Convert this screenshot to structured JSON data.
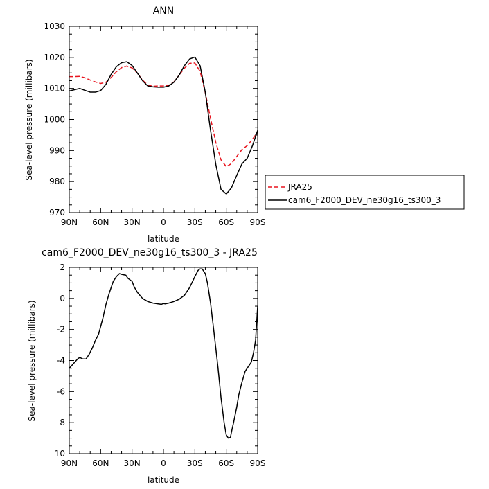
{
  "chart_data": [
    {
      "type": "line",
      "title": "ANN",
      "xlabel": "latitude",
      "ylabel": "Sea-level pressure (millibars)",
      "xlim": [
        90,
        -90
      ],
      "ylim": [
        970,
        1030
      ],
      "xticks": [
        90,
        60,
        30,
        0,
        -30,
        -60,
        -90
      ],
      "xtick_labels": [
        "90N",
        "60N",
        "30N",
        "0",
        "30S",
        "60S",
        "90S"
      ],
      "yticks": [
        970,
        980,
        990,
        1000,
        1010,
        1020,
        1030
      ],
      "ytick_labels": [
        "970",
        "980",
        "990",
        "1000",
        "1010",
        "1020",
        "1030"
      ],
      "legend": "outside-right",
      "series": [
        {
          "name": "JRA25",
          "style": "dashed",
          "color": "#e8141e",
          "x": [
            90,
            85,
            80,
            75,
            70,
            65,
            60,
            55,
            50,
            45,
            40,
            35,
            30,
            25,
            20,
            15,
            10,
            5,
            0,
            -5,
            -10,
            -15,
            -20,
            -25,
            -30,
            -35,
            -40,
            -45,
            -50,
            -55,
            -60,
            -65,
            -70,
            -75,
            -80,
            -85,
            -90
          ],
          "values": [
            1013.8,
            1013.8,
            1013.9,
            1013.4,
            1012.7,
            1012.1,
            1011.6,
            1012.0,
            1013.5,
            1015.4,
            1016.7,
            1017.2,
            1016.6,
            1015.0,
            1012.7,
            1011.1,
            1010.7,
            1010.8,
            1010.8,
            1011.0,
            1012.1,
            1014.3,
            1016.5,
            1018.1,
            1018.2,
            1015.5,
            1008.6,
            1000.4,
            992.6,
            987.0,
            984.8,
            985.8,
            988.1,
            990.3,
            991.6,
            993.6,
            996.0
          ]
        },
        {
          "name": "cam6_F2000_DEV_ne30g16_ts300_3",
          "style": "solid",
          "color": "#000000",
          "x": [
            90,
            85,
            80,
            75,
            70,
            65,
            60,
            55,
            50,
            45,
            40,
            35,
            30,
            25,
            20,
            15,
            10,
            5,
            0,
            -5,
            -10,
            -15,
            -20,
            -25,
            -30,
            -35,
            -40,
            -45,
            -50,
            -55,
            -60,
            -65,
            -70,
            -75,
            -80,
            -85,
            -90
          ],
          "values": [
            1009.2,
            1009.6,
            1010.0,
            1009.4,
            1008.8,
            1008.8,
            1009.3,
            1011.3,
            1014.5,
            1017.0,
            1018.3,
            1018.6,
            1017.4,
            1015.0,
            1012.5,
            1010.8,
            1010.5,
            1010.4,
            1010.4,
            1010.8,
            1012.0,
            1014.3,
            1017.3,
            1019.5,
            1020.1,
            1017.3,
            1008.8,
            996.5,
            985.5,
            977.5,
            976.0,
            978.0,
            982.0,
            985.7,
            987.5,
            991.5,
            996.5
          ]
        }
      ]
    },
    {
      "type": "line",
      "title": "cam6_F2000_DEV_ne30g16_ts300_3 - JRA25",
      "xlabel": "latitude",
      "ylabel": "Sea-level pressure (millibars)",
      "xlim": [
        90,
        -90
      ],
      "ylim": [
        -10,
        2
      ],
      "xticks": [
        90,
        60,
        30,
        0,
        -30,
        -60,
        -90
      ],
      "xtick_labels": [
        "90N",
        "60N",
        "30N",
        "0",
        "30S",
        "60S",
        "90S"
      ],
      "yticks": [
        -10,
        -8,
        -6,
        -4,
        -2,
        0,
        2
      ],
      "ytick_labels": [
        "-10",
        "-8",
        "-6",
        "-4",
        "-2",
        "0",
        "2"
      ],
      "series": [
        {
          "style": "solid",
          "color": "#000000",
          "x": [
            90,
            86,
            82,
            80,
            77,
            74,
            71,
            68,
            65,
            62,
            58,
            55,
            52,
            48,
            45,
            42,
            40,
            36,
            34,
            30,
            28,
            25,
            20,
            15,
            10,
            5,
            2,
            0,
            -2,
            -5,
            -10,
            -15,
            -20,
            -25,
            -30,
            -33,
            -35,
            -37,
            -40,
            -42,
            -45,
            -48,
            -52,
            -55,
            -58,
            -60,
            -62,
            -64,
            -65,
            -67,
            -70,
            -72,
            -75,
            -78,
            -80,
            -82,
            -84,
            -86,
            -88,
            -90
          ],
          "values": [
            -4.5,
            -4.2,
            -3.9,
            -3.8,
            -3.9,
            -3.9,
            -3.6,
            -3.2,
            -2.7,
            -2.3,
            -1.3,
            -0.4,
            0.3,
            1.1,
            1.4,
            1.6,
            1.55,
            1.5,
            1.3,
            1.1,
            0.75,
            0.4,
            0.0,
            -0.2,
            -0.3,
            -0.35,
            -0.38,
            -0.33,
            -0.35,
            -0.3,
            -0.2,
            -0.05,
            0.2,
            0.7,
            1.4,
            1.8,
            1.9,
            1.9,
            1.6,
            1.0,
            -0.3,
            -2.0,
            -4.4,
            -6.4,
            -8.0,
            -8.8,
            -9.0,
            -8.95,
            -8.6,
            -8.0,
            -7.0,
            -6.2,
            -5.4,
            -4.7,
            -4.5,
            -4.3,
            -4.1,
            -3.5,
            -2.7,
            -0.5
          ]
        }
      ]
    }
  ]
}
